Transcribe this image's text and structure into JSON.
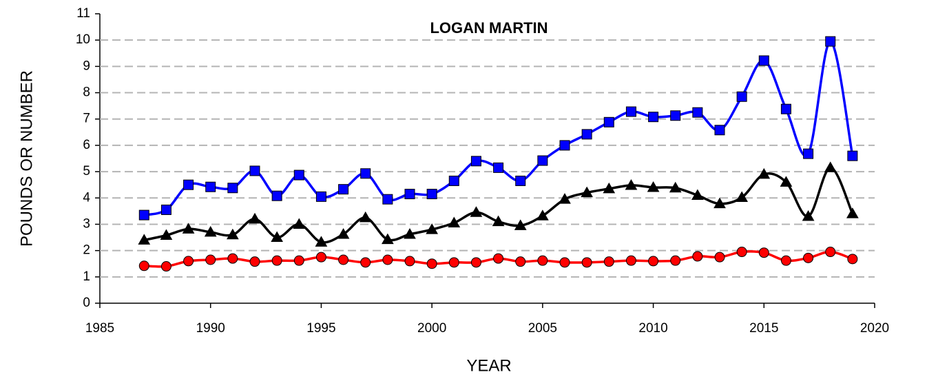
{
  "chart_data": {
    "type": "line",
    "title": "LOGAN MARTIN",
    "x_label": "YEAR",
    "y_label": "POUNDS OR NUMBER",
    "x": [
      1987,
      1988,
      1989,
      1990,
      1991,
      1992,
      1993,
      1994,
      1995,
      1996,
      1997,
      1998,
      1999,
      2000,
      2001,
      2002,
      2003,
      2004,
      2005,
      2006,
      2007,
      2008,
      2009,
      2010,
      2011,
      2012,
      2013,
      2014,
      2015,
      2016,
      2017,
      2018,
      2019
    ],
    "series": [
      {
        "color": "#0000ff",
        "marker": "square",
        "values": [
          3.35,
          3.55,
          4.5,
          4.42,
          4.38,
          5.03,
          4.08,
          4.87,
          4.05,
          4.33,
          4.93,
          3.95,
          4.15,
          4.15,
          4.65,
          5.4,
          5.15,
          4.65,
          5.42,
          6.0,
          6.42,
          6.88,
          7.28,
          7.08,
          7.13,
          7.25,
          6.58,
          7.85,
          9.22,
          7.38,
          5.68,
          9.95,
          5.6
        ]
      },
      {
        "color": "#000000",
        "marker": "triangle",
        "values": [
          2.4,
          2.58,
          2.82,
          2.7,
          2.6,
          3.2,
          2.5,
          3.0,
          2.32,
          2.62,
          3.25,
          2.42,
          2.62,
          2.8,
          3.05,
          3.45,
          3.1,
          2.95,
          3.32,
          3.95,
          4.2,
          4.35,
          4.48,
          4.4,
          4.38,
          4.1,
          3.78,
          4.02,
          4.9,
          4.6,
          3.3,
          5.15,
          3.4
        ]
      },
      {
        "color": "#ff0000",
        "marker": "circle",
        "values": [
          1.42,
          1.4,
          1.6,
          1.65,
          1.7,
          1.58,
          1.62,
          1.62,
          1.75,
          1.65,
          1.55,
          1.65,
          1.6,
          1.5,
          1.55,
          1.55,
          1.7,
          1.58,
          1.62,
          1.55,
          1.55,
          1.58,
          1.62,
          1.6,
          1.62,
          1.78,
          1.75,
          1.95,
          1.92,
          1.62,
          1.72,
          1.95,
          1.68
        ]
      }
    ],
    "xlim": [
      1985,
      2020
    ],
    "xticks": [
      1985,
      1990,
      1995,
      2000,
      2005,
      2010,
      2015,
      2020
    ],
    "ylim": [
      0,
      11
    ],
    "yticks": [
      0,
      1,
      2,
      3,
      4,
      5,
      6,
      7,
      8,
      9,
      10,
      11
    ],
    "grid": true,
    "smooth": true
  }
}
